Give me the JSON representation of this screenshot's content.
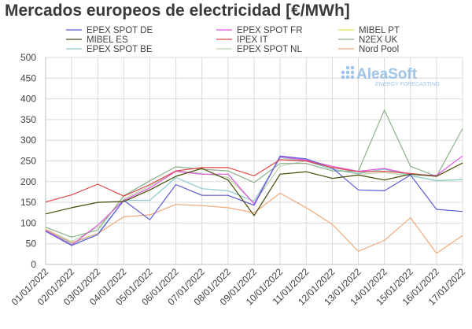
{
  "chart_data": {
    "type": "line",
    "title": "Mercados europeos de electricidad [€/MWh]",
    "categories": [
      "01/01/2022",
      "02/01/2022",
      "03/01/2022",
      "04/01/2022",
      "05/01/2022",
      "06/01/2022",
      "07/01/2022",
      "08/01/2022",
      "09/01/2022",
      "10/01/2022",
      "11/01/2022",
      "12/01/2022",
      "13/01/2022",
      "14/01/2022",
      "15/01/2022",
      "16/01/2022",
      "17/01/2022"
    ],
    "ylim": [
      0,
      500
    ],
    "yticks": [
      0,
      50,
      100,
      150,
      200,
      250,
      300,
      350,
      400,
      450,
      500
    ],
    "grid": true,
    "legend_position": "top",
    "series": [
      {
        "name": "EPEX SPOT DE",
        "color": "#5b5bd6",
        "values": [
          80,
          46,
          72,
          155,
          108,
          193,
          167,
          167,
          143,
          262,
          255,
          233,
          180,
          178,
          216,
          133,
          128
        ]
      },
      {
        "name": "EPEX SPOT FR",
        "color": "#e055e0",
        "values": [
          82,
          47,
          95,
          155,
          185,
          225,
          218,
          218,
          146,
          260,
          252,
          237,
          225,
          232,
          218,
          215,
          262
        ]
      },
      {
        "name": "MIBEL PT",
        "color": "#e8e850",
        "values": [
          122,
          137,
          150,
          152,
          180,
          213,
          232,
          204,
          118,
          218,
          224,
          208,
          216,
          204,
          218,
          213,
          245
        ]
      },
      {
        "name": "MIBEL ES",
        "color": "#4a4a1a",
        "values": [
          122,
          137,
          150,
          152,
          180,
          213,
          232,
          204,
          118,
          218,
          224,
          208,
          216,
          204,
          218,
          213,
          245
        ]
      },
      {
        "name": "IPEX IT",
        "color": "#e04848",
        "values": [
          151,
          168,
          194,
          165,
          193,
          226,
          234,
          234,
          214,
          253,
          250,
          234,
          224,
          225,
          220,
          213,
          245
        ]
      },
      {
        "name": "N2EX UK",
        "color": "#8ab08a",
        "values": [
          90,
          66,
          83,
          166,
          202,
          236,
          230,
          226,
          198,
          244,
          244,
          226,
          225,
          373,
          237,
          213,
          328
        ]
      },
      {
        "name": "EPEX SPOT BE",
        "color": "#88cccc",
        "values": [
          83,
          50,
          75,
          155,
          155,
          210,
          183,
          178,
          153,
          258,
          250,
          230,
          220,
          230,
          215,
          202,
          205
        ]
      },
      {
        "name": "EPEX SPOT NL",
        "color": "#b8d4a8",
        "values": [
          85,
          55,
          90,
          158,
          190,
          226,
          220,
          210,
          148,
          238,
          250,
          230,
          218,
          222,
          214,
          203,
          205
        ]
      },
      {
        "name": "Nord Pool",
        "color": "#f0a878",
        "values": [
          85,
          52,
          75,
          115,
          120,
          145,
          142,
          137,
          125,
          172,
          137,
          97,
          32,
          58,
          113,
          27,
          70
        ]
      }
    ]
  },
  "logo": {
    "name": "AleaSoft",
    "tagline": "ENERGY FORECASTING",
    "color": "#9ec4e8"
  }
}
